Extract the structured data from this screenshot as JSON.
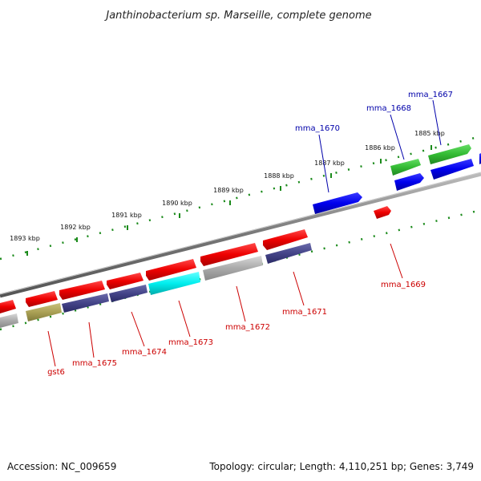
{
  "title": "Janthinobacterium sp. Marseille, complete genome",
  "footer": {
    "accession": "Accession: NC_009659",
    "summary": "Topology: circular; Length: 4,110,251 bp; Genes: 3,749"
  },
  "kbp_ticks": [
    "1893 kbp",
    "1892 kbp",
    "1891 kbp",
    "1890 kbp",
    "1889 kbp",
    "1888 kbp",
    "1887 kbp",
    "1886 kbp",
    "1885 kbp"
  ],
  "gene_labels": [
    {
      "text": "mma_1667",
      "color": "#0000aa"
    },
    {
      "text": "mma_1668",
      "color": "#0000aa"
    },
    {
      "text": "mma_1670",
      "color": "#0000aa"
    },
    {
      "text": "mma_1669",
      "color": "#cc0000"
    },
    {
      "text": "mma_1671",
      "color": "#cc0000"
    },
    {
      "text": "mma_1672",
      "color": "#cc0000"
    },
    {
      "text": "mma_1673",
      "color": "#cc0000"
    },
    {
      "text": "mma_1674",
      "color": "#cc0000"
    },
    {
      "text": "mma_1675",
      "color": "#cc0000"
    },
    {
      "text": "gst6",
      "color": "#cc0000"
    }
  ],
  "colors": {
    "backbone": "#888888",
    "tick": "#1a8a1a",
    "gene_red": "#ee0000",
    "gene_blue": "#0000ee",
    "gene_green": "#33bb33",
    "gene_cyan": "#00eeee",
    "gene_gray": "#aaaaaa",
    "gene_navy": "#444488",
    "gene_olive": "#aaa055"
  }
}
